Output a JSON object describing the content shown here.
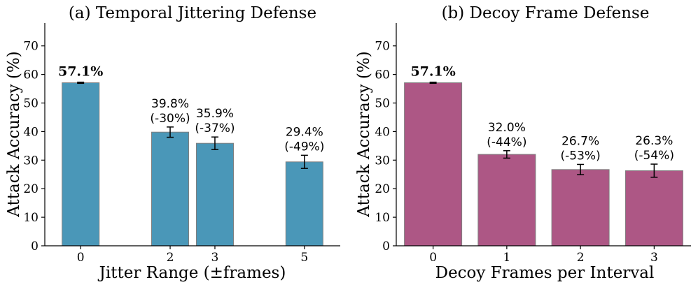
{
  "chart_data": [
    {
      "type": "bar",
      "title": "(a) Temporal Jittering Defense",
      "xlabel": "Jitter Range (±frames)",
      "ylabel": "Attack Accuracy (%)",
      "x": [
        0,
        2,
        3,
        5
      ],
      "categories": [
        "0",
        "2",
        "3",
        "5"
      ],
      "values": [
        57.1,
        39.8,
        35.9,
        29.4
      ],
      "errors": [
        0.2,
        1.8,
        2.2,
        2.3
      ],
      "labels": [
        "57.1%",
        "39.8%",
        "35.9%",
        "29.4%"
      ],
      "sublabels": [
        "",
        "(-30%)",
        "(-37%)",
        "(-49%)"
      ],
      "highlight_first": true,
      "xlim": [
        -0.8,
        5.8
      ],
      "ylim": [
        0,
        78
      ],
      "yticks": [
        0,
        10,
        20,
        30,
        40,
        50,
        60,
        70
      ],
      "color": "#4a97b8"
    },
    {
      "type": "bar",
      "title": "(b) Decoy Frame Defense",
      "xlabel": "Decoy Frames per Interval",
      "ylabel": "Attack Accuracy (%)",
      "x": [
        0,
        1,
        2,
        3
      ],
      "categories": [
        "0",
        "1",
        "2",
        "3"
      ],
      "values": [
        57.1,
        32.0,
        26.7,
        26.3
      ],
      "errors": [
        0.2,
        1.3,
        1.8,
        2.3
      ],
      "labels": [
        "57.1%",
        "32.0%",
        "26.7%",
        "26.3%"
      ],
      "sublabels": [
        "",
        "(-44%)",
        "(-53%)",
        "(-54%)"
      ],
      "highlight_first": true,
      "xlim": [
        -0.5,
        3.5
      ],
      "ylim": [
        0,
        78
      ],
      "yticks": [
        0,
        10,
        20,
        30,
        40,
        50,
        60,
        70
      ],
      "color": "#ad5785"
    }
  ]
}
